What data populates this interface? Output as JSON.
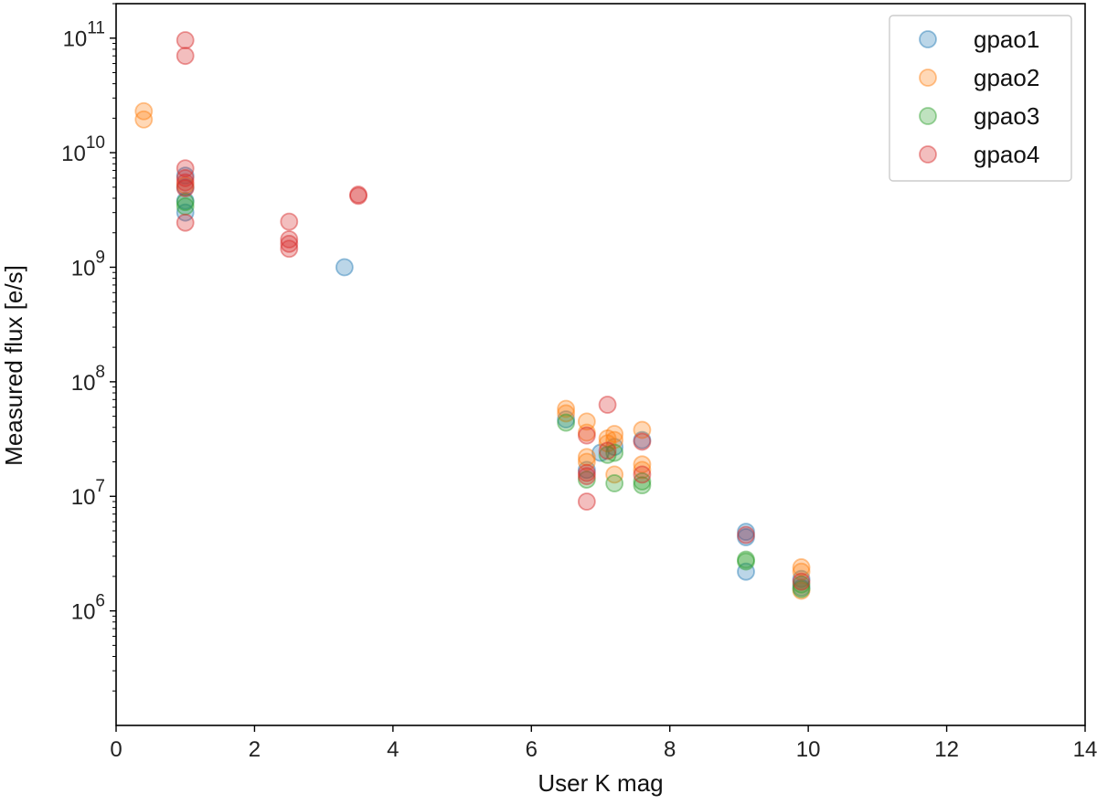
{
  "chart_data": {
    "type": "scatter",
    "xlabel": "User K mag",
    "ylabel": "Measured flux [e/s]",
    "xlim": [
      0,
      14
    ],
    "ylim": [
      100000,
      200000000000
    ],
    "yscale": "log",
    "grid": false,
    "legend_position": "top-right",
    "x_ticks": [
      "0",
      "2",
      "4",
      "6",
      "8",
      "10",
      "12",
      "14"
    ],
    "y_ticks": [
      {
        "value": 1000000,
        "base": "10",
        "exp": "6"
      },
      {
        "value": 10000000,
        "base": "10",
        "exp": "7"
      },
      {
        "value": 100000000,
        "base": "10",
        "exp": "8"
      },
      {
        "value": 1000000000,
        "base": "10",
        "exp": "9"
      },
      {
        "value": 10000000000,
        "base": "10",
        "exp": "10"
      },
      {
        "value": 100000000000,
        "base": "10",
        "exp": "11"
      }
    ],
    "series": [
      {
        "name": "gpao1",
        "color": "#1f77b4",
        "points": [
          [
            1.0,
            3000000000.0
          ],
          [
            1.0,
            3800000000.0
          ],
          [
            1.0,
            5000000000.0
          ],
          [
            1.0,
            6300000000.0
          ],
          [
            3.3,
            1000000000.0
          ],
          [
            6.5,
            47000000.0
          ],
          [
            7.0,
            24000000.0
          ],
          [
            7.2,
            27000000.0
          ],
          [
            7.6,
            31000000.0
          ],
          [
            6.8,
            17000000.0
          ],
          [
            9.1,
            4900000.0
          ],
          [
            9.1,
            4400000.0
          ],
          [
            9.1,
            2200000.0
          ],
          [
            9.9,
            1900000.0
          ],
          [
            9.9,
            1600000.0
          ]
        ]
      },
      {
        "name": "gpao2",
        "color": "#ff7f0e",
        "points": [
          [
            0.4,
            23000000000.0
          ],
          [
            0.4,
            19500000000.0
          ],
          [
            1.0,
            5200000000.0
          ],
          [
            6.5,
            58000000.0
          ],
          [
            6.5,
            53000000.0
          ],
          [
            6.8,
            45000000.0
          ],
          [
            6.8,
            36000000.0
          ],
          [
            6.8,
            22000000.0
          ],
          [
            6.8,
            20000000.0
          ],
          [
            7.1,
            32000000.0
          ],
          [
            7.1,
            29000000.0
          ],
          [
            7.2,
            35000000.0
          ],
          [
            7.2,
            31000000.0
          ],
          [
            7.2,
            15500000.0
          ],
          [
            7.6,
            38000000.0
          ],
          [
            7.6,
            19000000.0
          ],
          [
            7.6,
            17000000.0
          ],
          [
            9.9,
            2400000.0
          ],
          [
            9.9,
            2200000.0
          ],
          [
            9.9,
            1500000.0
          ]
        ]
      },
      {
        "name": "gpao3",
        "color": "#2ca02c",
        "points": [
          [
            1.0,
            3400000000.0
          ],
          [
            1.0,
            3700000000.0
          ],
          [
            6.5,
            44000000.0
          ],
          [
            6.8,
            14000000.0
          ],
          [
            7.1,
            23000000.0
          ],
          [
            7.2,
            24000000.0
          ],
          [
            7.2,
            13000000.0
          ],
          [
            7.6,
            13500000.0
          ],
          [
            7.6,
            12500000.0
          ],
          [
            9.1,
            2800000.0
          ],
          [
            9.1,
            2700000.0
          ],
          [
            9.9,
            1700000.0
          ],
          [
            9.9,
            1550000.0
          ]
        ]
      },
      {
        "name": "gpao4",
        "color": "#d62728",
        "points": [
          [
            1.0,
            96000000000.0
          ],
          [
            1.0,
            70000000000.0
          ],
          [
            1.0,
            7300000000.0
          ],
          [
            1.0,
            6000000000.0
          ],
          [
            1.0,
            5500000000.0
          ],
          [
            1.0,
            4900000000.0
          ],
          [
            1.0,
            2450000000.0
          ],
          [
            2.5,
            2500000000.0
          ],
          [
            2.5,
            1750000000.0
          ],
          [
            2.5,
            1600000000.0
          ],
          [
            2.5,
            1450000000.0
          ],
          [
            3.5,
            4300000000.0
          ],
          [
            3.5,
            4200000000.0
          ],
          [
            7.1,
            63000000.0
          ],
          [
            6.8,
            34000000.0
          ],
          [
            7.1,
            25000000.0
          ],
          [
            6.8,
            16000000.0
          ],
          [
            6.8,
            15000000.0
          ],
          [
            6.8,
            9000000.0
          ],
          [
            7.6,
            15500000.0
          ],
          [
            7.6,
            30000000.0
          ],
          [
            9.1,
            4600000.0
          ],
          [
            9.9,
            1800000.0
          ]
        ]
      }
    ]
  }
}
